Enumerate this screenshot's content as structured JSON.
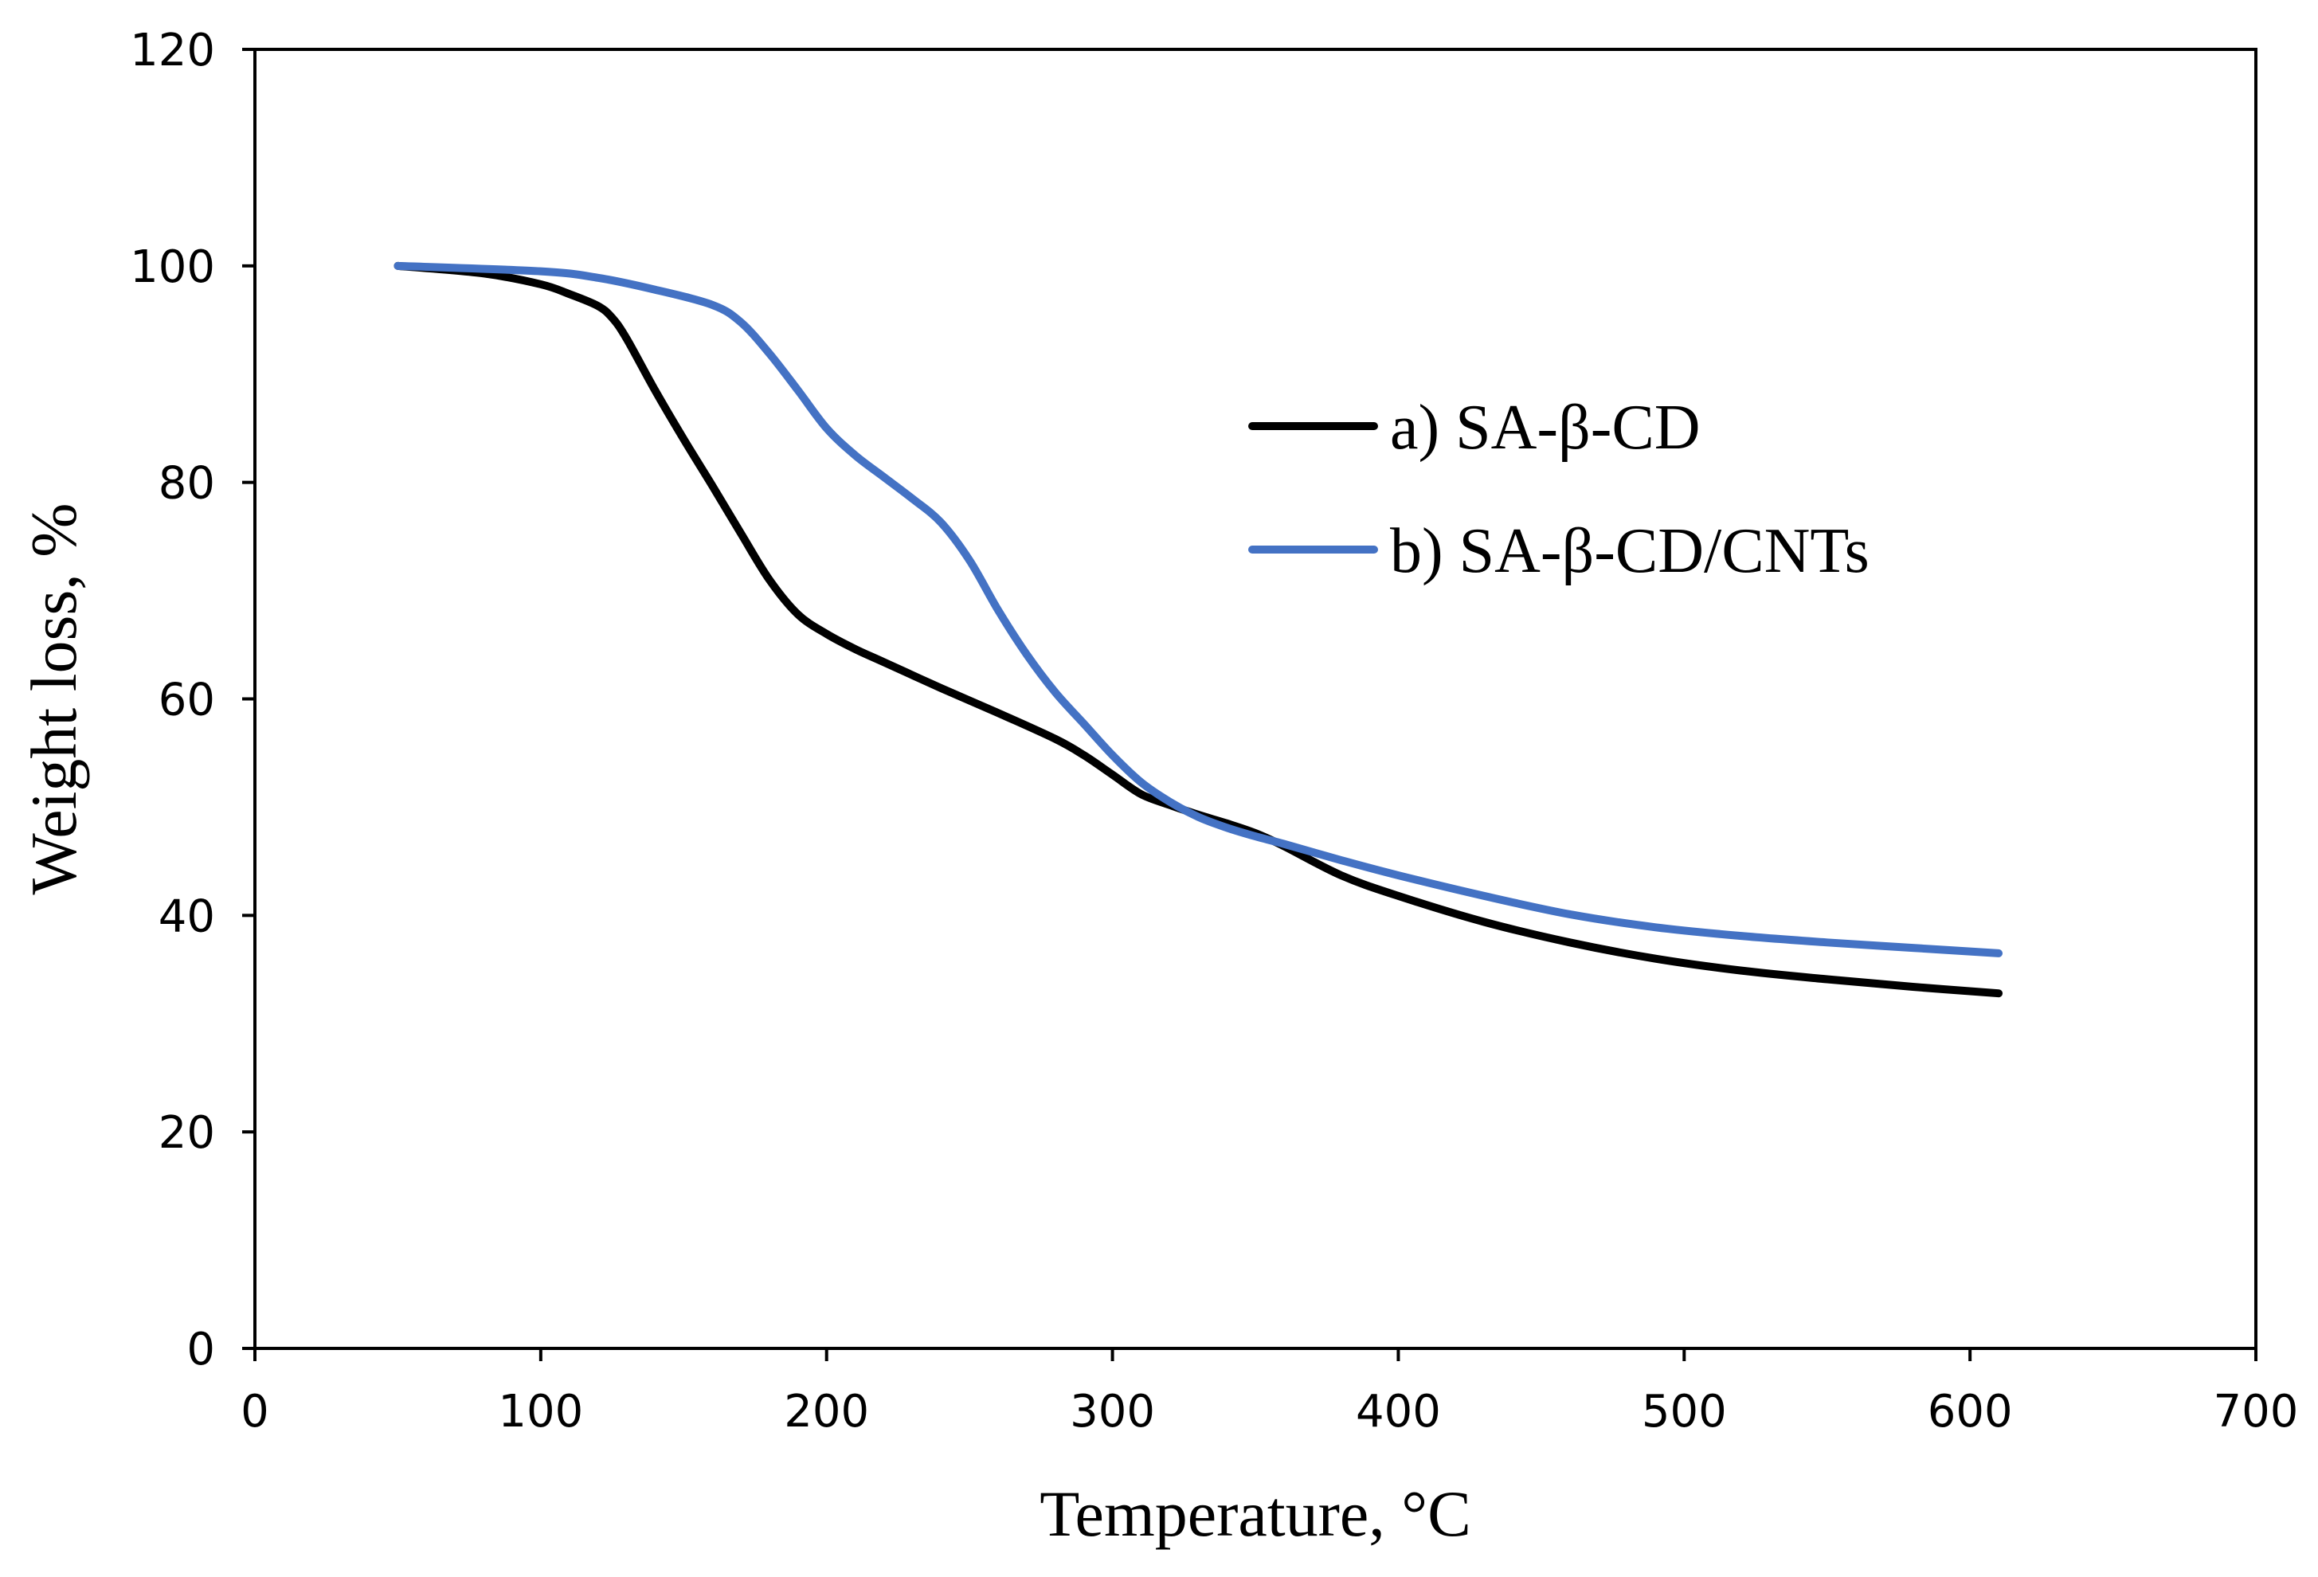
{
  "chart_data": {
    "type": "line",
    "title": "",
    "xlabel": "Temperature, °C",
    "ylabel": "Weight loss, %",
    "xlim": [
      0,
      700
    ],
    "ylim": [
      0,
      120
    ],
    "xticks": [
      0,
      100,
      200,
      300,
      400,
      500,
      600,
      700
    ],
    "yticks": [
      0,
      20,
      40,
      60,
      80,
      100,
      120
    ],
    "grid": false,
    "legend_position": "upper-right",
    "series": [
      {
        "name": "a) SA-β-CD",
        "color": "#000000",
        "x": [
          50,
          80,
          100,
          110,
          120,
          125,
          130,
          140,
          150,
          160,
          170,
          180,
          190,
          200,
          210,
          220,
          240,
          260,
          280,
          290,
          300,
          310,
          320,
          330,
          340,
          350,
          360,
          380,
          400,
          430,
          460,
          490,
          520,
          550,
          580,
          610
        ],
        "y": [
          100,
          99.3,
          98.3,
          97.4,
          96.3,
          95.2,
          93.3,
          88.5,
          84,
          79.7,
          75.3,
          71,
          67.8,
          66,
          64.6,
          63.4,
          61,
          58.7,
          56.3,
          54.8,
          53,
          51.2,
          50.2,
          49.3,
          48.5,
          47.6,
          46.4,
          43.7,
          41.8,
          39.4,
          37.5,
          36,
          34.9,
          34.1,
          33.4,
          32.8
        ]
      },
      {
        "name": "b) SA-β-CD/CNTs",
        "color": "#4472C4",
        "x": [
          50,
          100,
          120,
          140,
          160,
          170,
          180,
          190,
          200,
          210,
          220,
          230,
          240,
          250,
          260,
          270,
          280,
          290,
          300,
          310,
          320,
          330,
          340,
          350,
          360,
          380,
          400,
          430,
          460,
          490,
          520,
          550,
          580,
          610
        ],
        "y": [
          100,
          99.5,
          98.9,
          97.8,
          96.4,
          94.8,
          91.9,
          88.5,
          85,
          82.5,
          80.5,
          78.5,
          76.3,
          72.8,
          68.2,
          64.1,
          60.6,
          57.7,
          54.8,
          52.3,
          50.5,
          49.1,
          48.1,
          47.3,
          46.6,
          45.1,
          43.7,
          41.8,
          40.1,
          38.9,
          38.1,
          37.5,
          37,
          36.5
        ]
      }
    ]
  }
}
